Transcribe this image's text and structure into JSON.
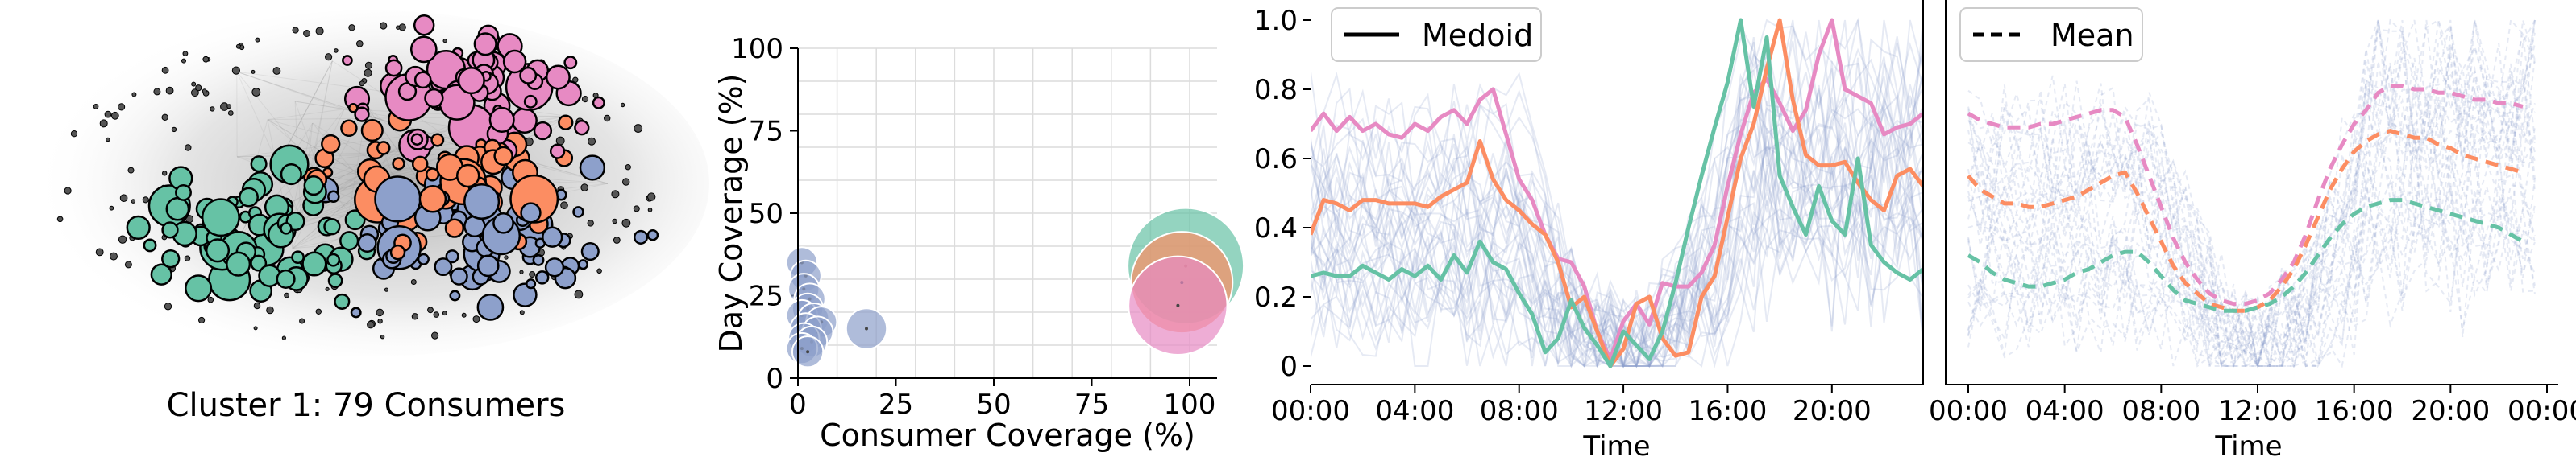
{
  "colors": {
    "green": "#66c2a5",
    "orange": "#fc8d62",
    "blue": "#8da0cb",
    "pink": "#e78ac3",
    "faint": "#8da0cb",
    "axis": "#000000",
    "grid": "#dcdcdc"
  },
  "chart_data": [
    {
      "type": "network",
      "caption": "Cluster 1: 79 Consumers",
      "node_groups": [
        "green",
        "orange",
        "blue",
        "pink"
      ]
    },
    {
      "type": "scatter",
      "xlabel": "Consumer Coverage (%)",
      "ylabel": "Day Coverage (%)",
      "xlim": [
        0,
        105
      ],
      "ylim": [
        0,
        100
      ],
      "xticks": [
        "0",
        "25",
        "50",
        "75",
        "100"
      ],
      "yticks": [
        "0",
        "25",
        "50",
        "75",
        "100"
      ],
      "grid": true,
      "points": [
        {
          "group": "green",
          "x": 99,
          "y": 34,
          "size": 1.0
        },
        {
          "group": "orange",
          "x": 98,
          "y": 29,
          "size": 0.85
        },
        {
          "group": "pink",
          "x": 97,
          "y": 22,
          "size": 0.82
        },
        {
          "group": "blue",
          "x": 17.5,
          "y": 15,
          "size": 0.22
        },
        {
          "group": "blue",
          "x": 1,
          "y": 35,
          "size": 0.12
        },
        {
          "group": "blue",
          "x": 2,
          "y": 31,
          "size": 0.12
        },
        {
          "group": "blue",
          "x": 1.5,
          "y": 27,
          "size": 0.12
        },
        {
          "group": "blue",
          "x": 3,
          "y": 24,
          "size": 0.12
        },
        {
          "group": "blue",
          "x": 2.5,
          "y": 21,
          "size": 0.12
        },
        {
          "group": "blue",
          "x": 1,
          "y": 19,
          "size": 0.12
        },
        {
          "group": "blue",
          "x": 4,
          "y": 18,
          "size": 0.12
        },
        {
          "group": "blue",
          "x": 6,
          "y": 17,
          "size": 0.12
        },
        {
          "group": "blue",
          "x": 2,
          "y": 15,
          "size": 0.12
        },
        {
          "group": "blue",
          "x": 5,
          "y": 14,
          "size": 0.12
        },
        {
          "group": "blue",
          "x": 1.5,
          "y": 12,
          "size": 0.12
        },
        {
          "group": "blue",
          "x": 3.5,
          "y": 11,
          "size": 0.12
        },
        {
          "group": "blue",
          "x": 1,
          "y": 9,
          "size": 0.12
        },
        {
          "group": "blue",
          "x": 2.5,
          "y": 8,
          "size": 0.12
        }
      ]
    },
    {
      "type": "line",
      "legend": "Medoid",
      "legend_placement": "top-left",
      "xlabel": "Time",
      "xticks": [
        "00:00",
        "04:00",
        "08:00",
        "12:00",
        "16:00",
        "20:00"
      ],
      "xlim": [
        0,
        23.5
      ],
      "ylim": [
        0,
        1
      ],
      "yticks": [
        "0",
        "0.2",
        "0.4",
        "0.6",
        "0.8",
        "1.0"
      ],
      "series": [
        {
          "group": "pink",
          "values": [
            0.68,
            0.73,
            0.68,
            0.72,
            0.68,
            0.7,
            0.67,
            0.66,
            0.7,
            0.68,
            0.72,
            0.74,
            0.7,
            0.77,
            0.8,
            0.67,
            0.54,
            0.48,
            0.38,
            0.31,
            0.3,
            0.23,
            0.1,
            0.02,
            0.13,
            0.18,
            0.12,
            0.24,
            0.23,
            0.23,
            0.27,
            0.35,
            0.52,
            0.67,
            0.79,
            0.83,
            0.76,
            0.68,
            0.74,
            0.9,
            1.0,
            0.8,
            0.78,
            0.76,
            0.67,
            0.69,
            0.7,
            0.73
          ]
        },
        {
          "group": "orange",
          "values": [
            0.38,
            0.48,
            0.47,
            0.45,
            0.48,
            0.48,
            0.47,
            0.47,
            0.47,
            0.46,
            0.49,
            0.51,
            0.53,
            0.65,
            0.54,
            0.48,
            0.45,
            0.41,
            0.38,
            0.3,
            0.17,
            0.2,
            0.1,
            0.0,
            0.05,
            0.18,
            0.2,
            0.08,
            0.03,
            0.04,
            0.2,
            0.26,
            0.43,
            0.6,
            0.7,
            0.86,
            1.0,
            0.77,
            0.61,
            0.58,
            0.58,
            0.59,
            0.53,
            0.48,
            0.45,
            0.55,
            0.57,
            0.52
          ]
        },
        {
          "group": "green",
          "values": [
            0.26,
            0.27,
            0.26,
            0.26,
            0.29,
            0.27,
            0.25,
            0.28,
            0.26,
            0.29,
            0.25,
            0.32,
            0.27,
            0.36,
            0.3,
            0.28,
            0.21,
            0.15,
            0.04,
            0.08,
            0.19,
            0.11,
            0.06,
            0.0,
            0.1,
            0.06,
            0.02,
            0.1,
            0.24,
            0.4,
            0.55,
            0.69,
            0.82,
            1.0,
            0.75,
            0.95,
            0.55,
            0.46,
            0.38,
            0.52,
            0.42,
            0.38,
            0.6,
            0.35,
            0.3,
            0.27,
            0.25,
            0.28
          ]
        }
      ]
    },
    {
      "type": "line",
      "legend": "Mean",
      "legend_placement": "top-left",
      "xlabel": "Time",
      "xticks": [
        "00:00",
        "04:00",
        "08:00",
        "12:00",
        "16:00",
        "20:00",
        "00:00"
      ],
      "xlim": [
        0,
        24
      ],
      "ylim": [
        0,
        1
      ],
      "series": [
        {
          "group": "pink",
          "values": [
            0.73,
            0.71,
            0.7,
            0.69,
            0.69,
            0.69,
            0.7,
            0.7,
            0.71,
            0.72,
            0.73,
            0.74,
            0.74,
            0.72,
            0.64,
            0.55,
            0.46,
            0.37,
            0.3,
            0.25,
            0.21,
            0.19,
            0.18,
            0.18,
            0.19,
            0.21,
            0.25,
            0.3,
            0.38,
            0.48,
            0.57,
            0.64,
            0.7,
            0.74,
            0.79,
            0.81,
            0.81,
            0.8,
            0.8,
            0.79,
            0.79,
            0.78,
            0.77,
            0.77,
            0.76,
            0.76,
            0.75
          ]
        },
        {
          "group": "orange",
          "values": [
            0.55,
            0.51,
            0.49,
            0.47,
            0.47,
            0.46,
            0.46,
            0.47,
            0.48,
            0.49,
            0.51,
            0.53,
            0.55,
            0.56,
            0.5,
            0.43,
            0.36,
            0.29,
            0.24,
            0.21,
            0.18,
            0.17,
            0.16,
            0.16,
            0.17,
            0.19,
            0.23,
            0.28,
            0.35,
            0.43,
            0.51,
            0.57,
            0.62,
            0.65,
            0.67,
            0.68,
            0.67,
            0.66,
            0.66,
            0.64,
            0.63,
            0.61,
            0.6,
            0.59,
            0.58,
            0.57,
            0.56
          ]
        },
        {
          "group": "green",
          "values": [
            0.32,
            0.3,
            0.27,
            0.25,
            0.24,
            0.23,
            0.23,
            0.24,
            0.25,
            0.27,
            0.28,
            0.3,
            0.32,
            0.33,
            0.33,
            0.3,
            0.26,
            0.22,
            0.19,
            0.18,
            0.17,
            0.16,
            0.16,
            0.16,
            0.17,
            0.18,
            0.2,
            0.23,
            0.27,
            0.32,
            0.37,
            0.41,
            0.44,
            0.46,
            0.47,
            0.48,
            0.48,
            0.47,
            0.46,
            0.45,
            0.44,
            0.43,
            0.42,
            0.41,
            0.4,
            0.38,
            0.36
          ]
        }
      ]
    }
  ]
}
